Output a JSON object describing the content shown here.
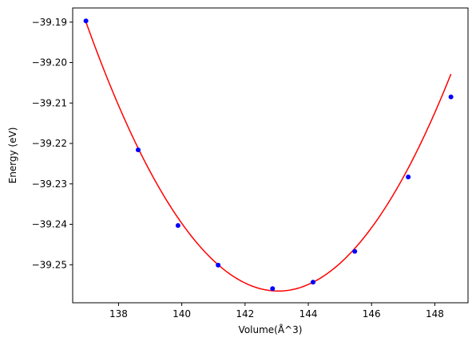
{
  "chart_data": {
    "type": "scatter",
    "title": "",
    "xlabel": "Volume(Å^3)",
    "ylabel": "Energy (eV)",
    "xlim": [
      136.55,
      149.05
    ],
    "ylim": [
      -39.2594,
      -39.1865
    ],
    "x_ticks": [
      138,
      140,
      142,
      144,
      146,
      148
    ],
    "x_tick_labels": [
      "138",
      "140",
      "142",
      "144",
      "146",
      "148"
    ],
    "y_ticks": [
      -39.19,
      -39.2,
      -39.21,
      -39.22,
      -39.23,
      -39.24,
      -39.25
    ],
    "y_tick_labels": [
      "−39.19",
      "−39.20",
      "−39.21",
      "−39.22",
      "−39.23",
      "−39.24",
      "−39.25"
    ],
    "grid": false,
    "legend": "none",
    "series": [
      {
        "kind": "points",
        "color": "#0000ff",
        "marker": "circle",
        "x": [
          136.97,
          138.62,
          139.88,
          141.15,
          142.87,
          144.15,
          145.47,
          147.16,
          148.51
        ],
        "y": [
          -39.1897,
          -39.2216,
          -39.2403,
          -39.2501,
          -39.2559,
          -39.2543,
          -39.2467,
          -39.2283,
          -39.2085
        ]
      },
      {
        "kind": "fit",
        "color": "#ff0000",
        "curve": "parabola",
        "x_min": 136.97,
        "x_max": 148.51,
        "vertex_x": 143.05,
        "vertex_y": -39.2565,
        "curvature": 0.0018
      }
    ]
  }
}
